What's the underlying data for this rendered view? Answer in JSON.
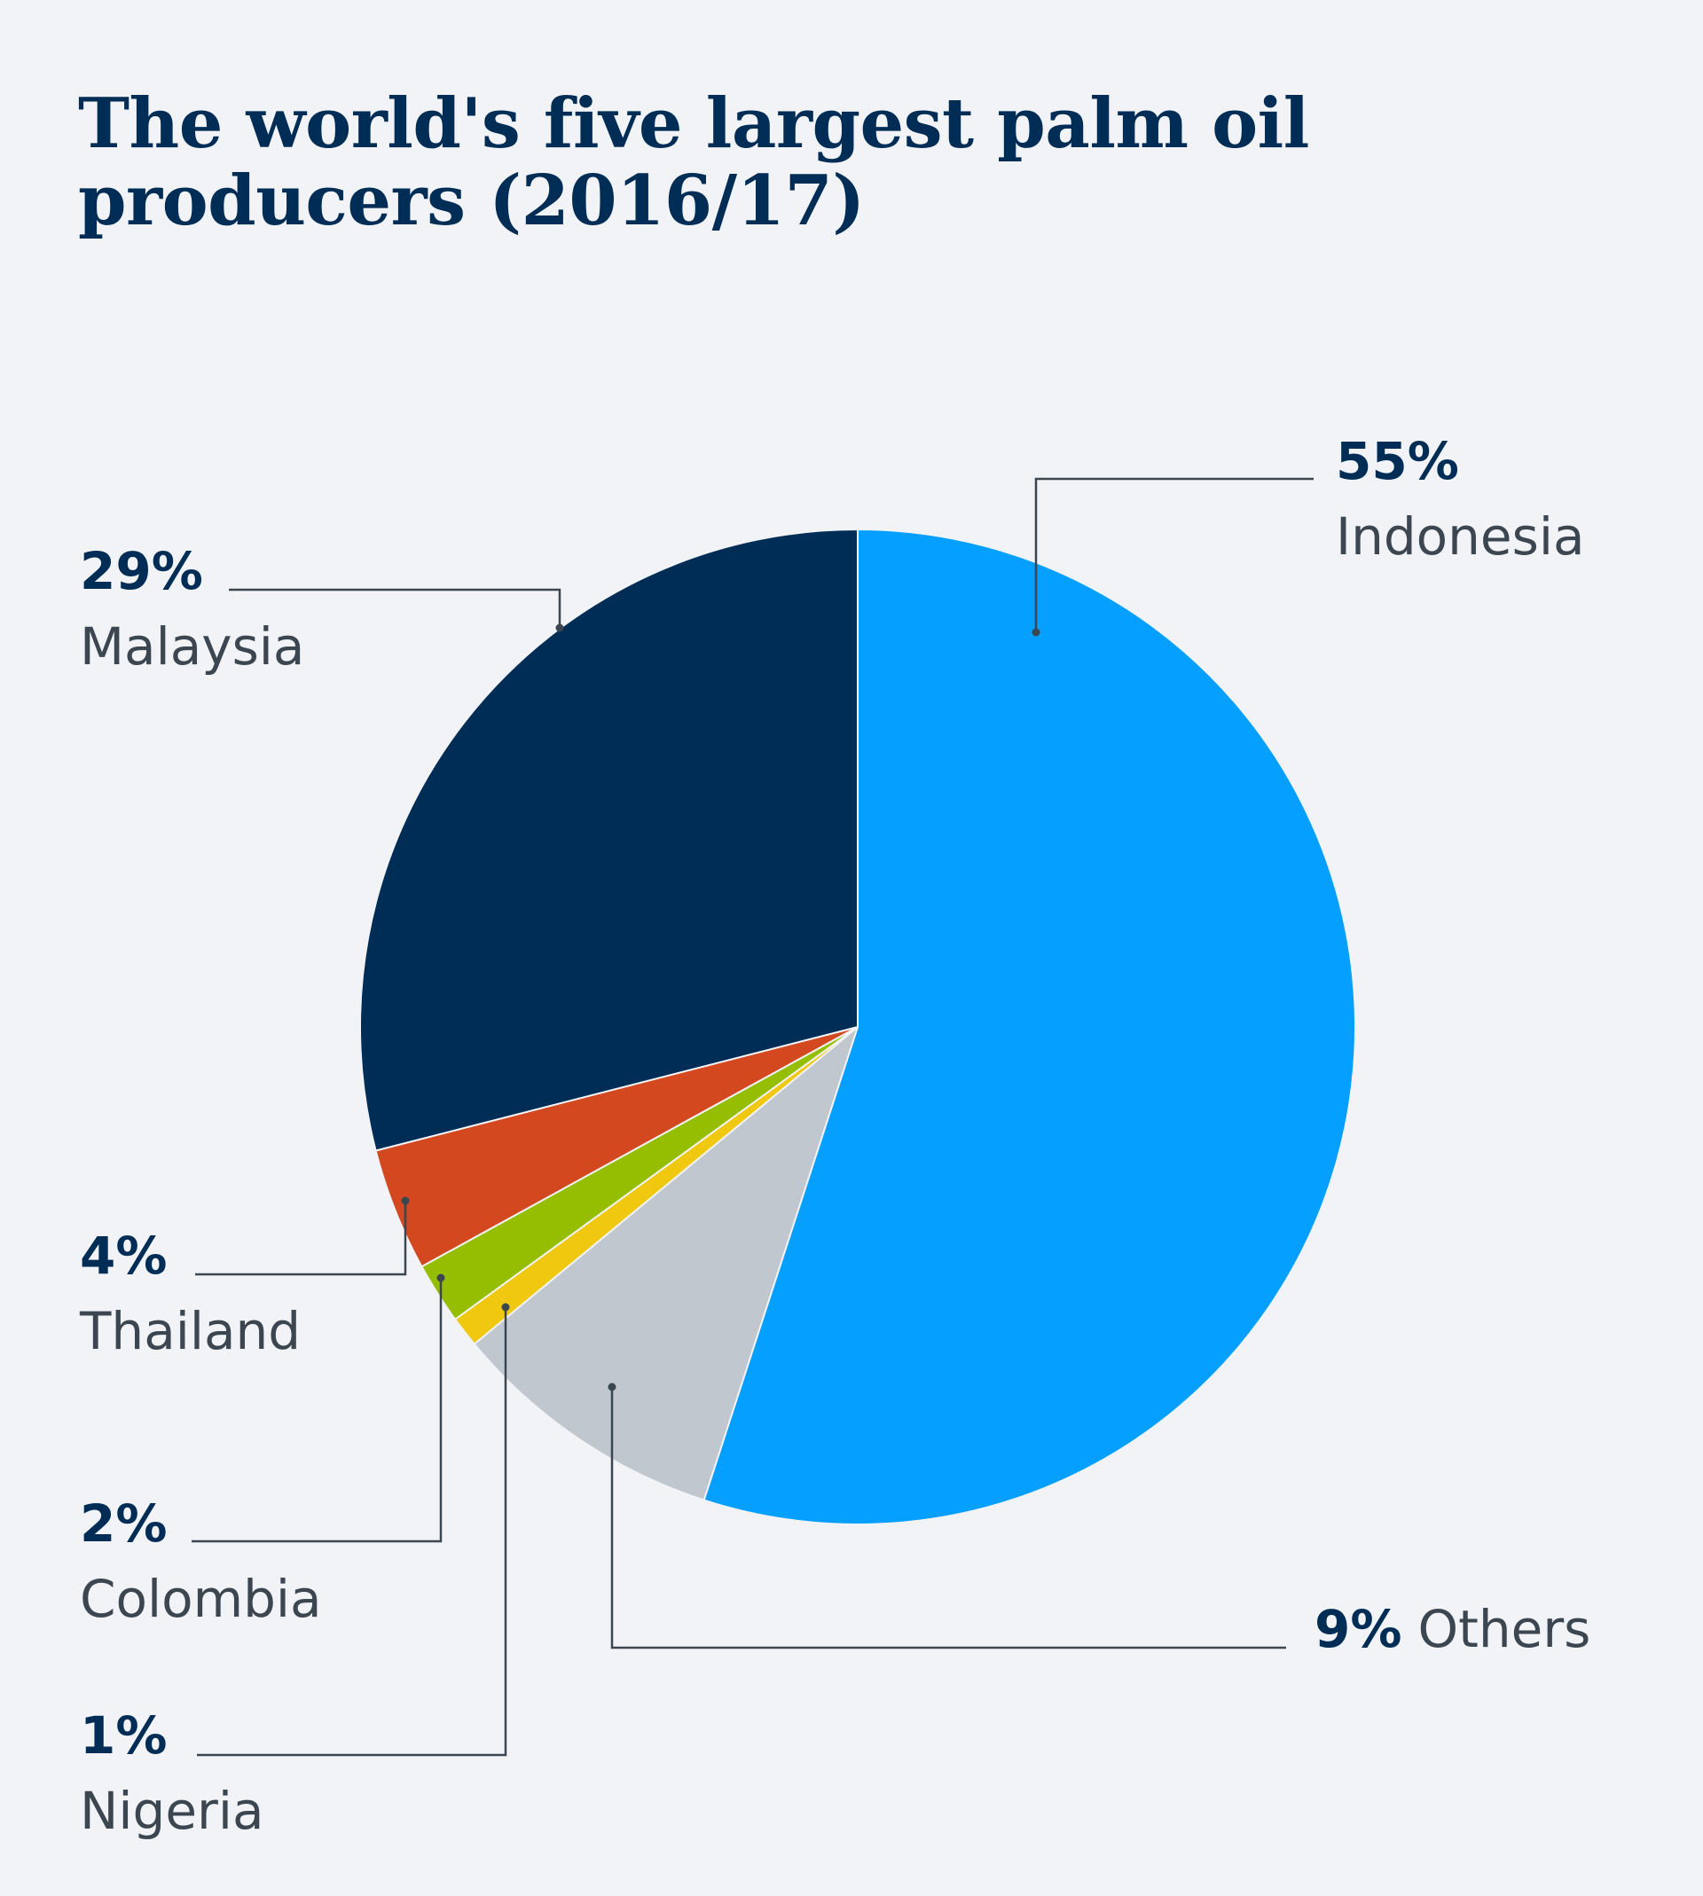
{
  "chart_data": {
    "type": "pie",
    "title": "The world's five largest palm oil producers (2016/17)",
    "unit": "%",
    "slices": [
      {
        "label": "Indonesia",
        "value": 55,
        "value_label": "55%",
        "color": "#059fff"
      },
      {
        "label": "Others",
        "value": 9,
        "value_label": "9%",
        "color": "#c0c7cf"
      },
      {
        "label": "Nigeria",
        "value": 1,
        "value_label": "1%",
        "color": "#f0c80f"
      },
      {
        "label": "Colombia",
        "value": 2,
        "value_label": "2%",
        "color": "#96be00"
      },
      {
        "label": "Thailand",
        "value": 4,
        "value_label": "4%",
        "color": "#d44820"
      },
      {
        "label": "Malaysia",
        "value": 29,
        "value_label": "29%",
        "color": "#002d55"
      }
    ],
    "start_angle": "12 o'clock",
    "direction": "clockwise",
    "legend": "none (direct labels with leader lines)"
  }
}
